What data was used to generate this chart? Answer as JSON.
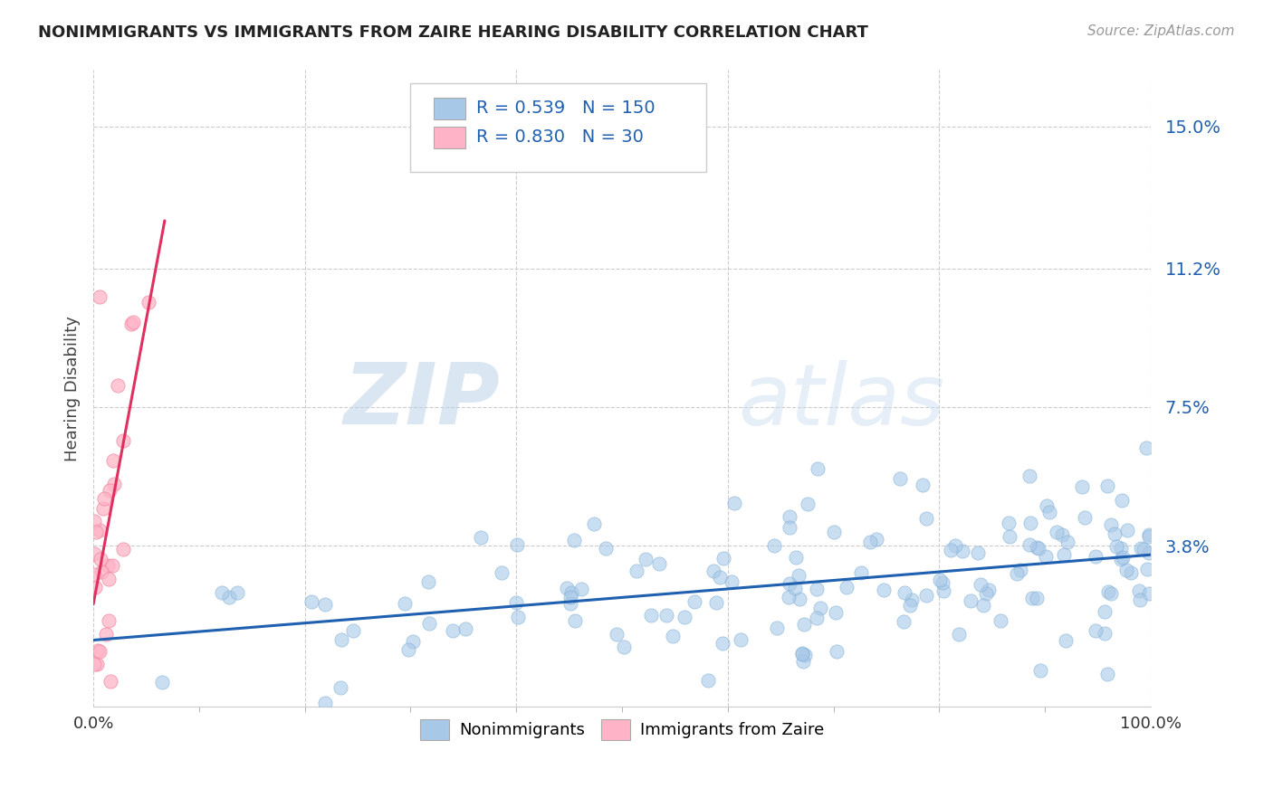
{
  "title": "NONIMMIGRANTS VS IMMIGRANTS FROM ZAIRE HEARING DISABILITY CORRELATION CHART",
  "source_text": "Source: ZipAtlas.com",
  "ylabel": "Hearing Disability",
  "watermark_zip": "ZIP",
  "watermark_atlas": "atlas",
  "xmin": 0.0,
  "xmax": 1.0,
  "ymin": -0.005,
  "ymax": 0.165,
  "yticks": [
    0.038,
    0.075,
    0.112,
    0.15
  ],
  "ytick_labels": [
    "3.8%",
    "7.5%",
    "11.2%",
    "15.0%"
  ],
  "xtick_labels": [
    "0.0%",
    "100.0%"
  ],
  "xticks": [
    0.0,
    1.0
  ],
  "blue_R": 0.539,
  "blue_N": 150,
  "pink_R": 0.83,
  "pink_N": 30,
  "blue_color": "#a8c8e8",
  "blue_edge_color": "#7badd4",
  "pink_color": "#ffb3c6",
  "pink_edge_color": "#f08098",
  "blue_line_color": "#2060b0",
  "pink_line_color": "#e03060",
  "legend_color": "#2060b0",
  "background_color": "#ffffff",
  "grid_color": "#cccccc",
  "title_color": "#222222",
  "blue_scatter_alpha": 0.6,
  "pink_scatter_alpha": 0.75,
  "scatter_size": 120
}
